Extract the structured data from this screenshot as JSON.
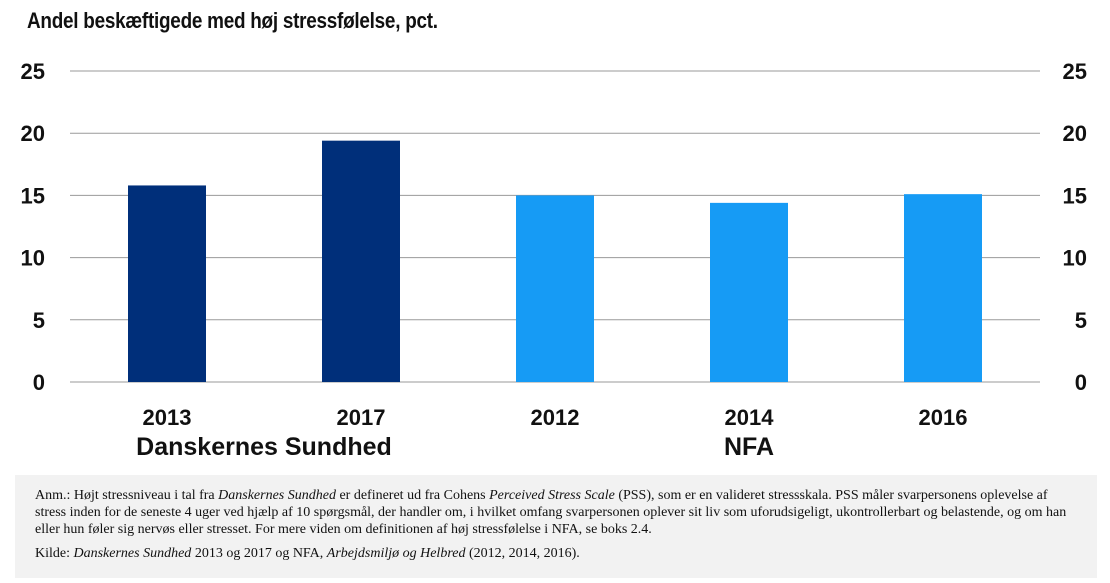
{
  "chart_data": {
    "type": "bar",
    "title": "Andel beskæftigede med høj stressfølelse, pct.",
    "categories": [
      "2013",
      "2017",
      "2012",
      "2014",
      "2016"
    ],
    "groups": [
      {
        "label": "Danskernes Sundhed",
        "categories": [
          "2013",
          "2017"
        ]
      },
      {
        "label": "NFA",
        "categories": [
          "2012",
          "2014",
          "2016"
        ]
      }
    ],
    "values": [
      15.8,
      19.4,
      15.0,
      14.4,
      15.1
    ],
    "colors": [
      "#002f7a",
      "#002f7a",
      "#169bf5",
      "#169bf5",
      "#169bf5"
    ],
    "ylim": [
      0,
      25
    ],
    "yticks": [
      "0",
      "5",
      "10",
      "15",
      "20",
      "25"
    ],
    "grid": true,
    "xlabel": "",
    "ylabel": ""
  },
  "note": {
    "prefix": "Anm.: Højt stressniveau i tal fra ",
    "source1": "Danskernes Sundhed",
    "mid": " er defineret ud fra Cohens ",
    "scale": "Perceived Stress Scale",
    "rest": " (PSS), som er en valideret stressskala. PSS måler svarpersonens oplevelse af stress inden for de seneste 4 uger ved hjælp af 10 spørgsmål, der handler om, i hvilket omfang svarpersonen oplever sit liv som uforudsigeligt, ukontrollerbart og belastende, og om han eller hun føler sig nervøs eller stresset. For mere viden om definitionen af høj stressfølelse i NFA, se boks 2.4."
  },
  "source": {
    "prefix": "Kilde: ",
    "source1": "Danskernes Sundhed",
    "mid": " 2013 og 2017 og NFA, ",
    "source2": "Arbejdsmiljø og Helbred",
    "rest": " (2012, 2014, 2016)."
  }
}
